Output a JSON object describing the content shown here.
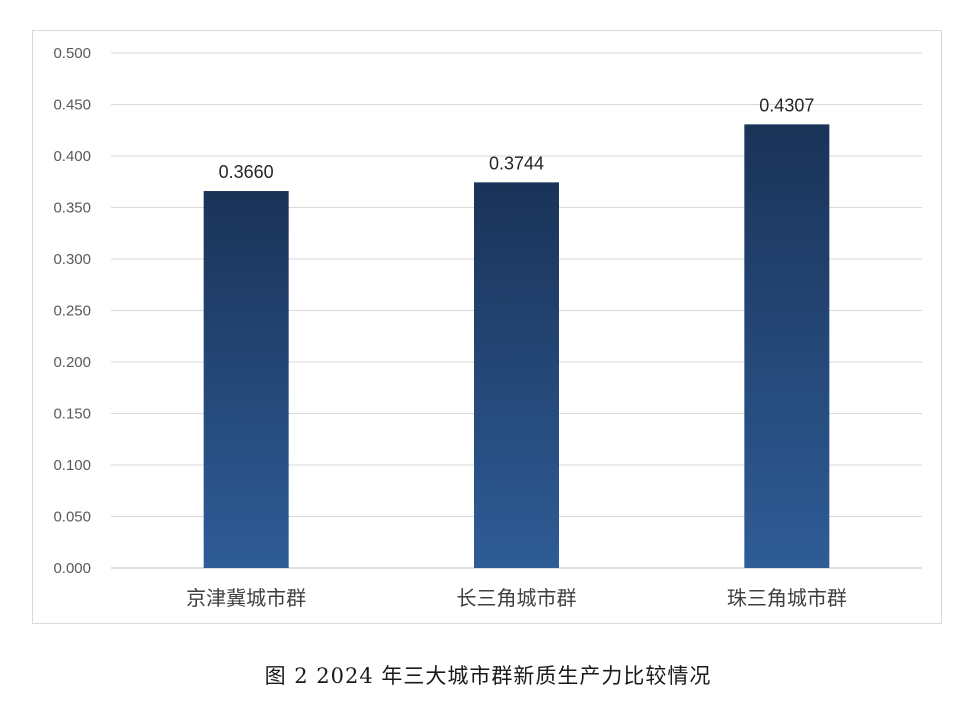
{
  "caption": "图 2 2024 年三大城市群新质生产力比较情况",
  "chart_data": {
    "type": "bar",
    "categories": [
      "京津冀城市群",
      "长三角城市群",
      "珠三角城市群"
    ],
    "values": [
      0.366,
      0.3744,
      0.4307
    ],
    "data_labels": [
      "0.3660",
      "0.3744",
      "0.4307"
    ],
    "ylim": [
      0,
      0.5
    ],
    "yticks": [
      "0.000",
      "0.050",
      "0.100",
      "0.150",
      "0.200",
      "0.250",
      "0.300",
      "0.350",
      "0.400",
      "0.450",
      "0.500"
    ],
    "grid": true,
    "legend": "none",
    "colors": {
      "bar_top": "#1a3358",
      "bar_bottom": "#2f5c96",
      "grid": "#d9d9d9",
      "axis": "#bfbfbf"
    }
  }
}
